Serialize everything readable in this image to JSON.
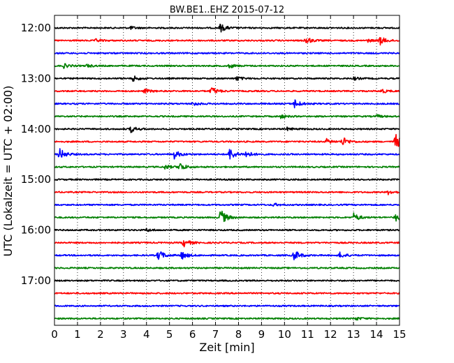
{
  "chart_data": {
    "type": "line",
    "title": "BW.BE1..EHZ 2015-07-12",
    "xlabel": "Zeit  [min]",
    "ylabel": "UTC (Lokalzeit = UTC + 02:00)",
    "xlim": [
      0,
      15
    ],
    "x_ticks": [
      0,
      1,
      2,
      3,
      4,
      5,
      6,
      7,
      8,
      9,
      10,
      11,
      12,
      13,
      14,
      15
    ],
    "x_tick_labels": [
      "0",
      "1",
      "2",
      "3",
      "4",
      "5",
      "6",
      "7",
      "8",
      "9",
      "10",
      "11",
      "12",
      "13",
      "14",
      "15"
    ],
    "y_tick_labels": [
      {
        "label": "12:00",
        "trace": 0
      },
      {
        "label": "13:00",
        "trace": 4
      },
      {
        "label": "14:00",
        "trace": 8
      },
      {
        "label": "15:00",
        "trace": 12
      },
      {
        "label": "16:00",
        "trace": 16
      },
      {
        "label": "17:00",
        "trace": 20
      }
    ],
    "trace_interval_min": 15,
    "grid": {
      "vertical": true,
      "style": "dotted"
    },
    "colors": [
      "#000000",
      "#ff0000",
      "#0000ff",
      "#008000"
    ],
    "series": [
      {
        "start": "12:00",
        "color": "#000000",
        "events": [
          {
            "t": 7.2,
            "amp": 6
          },
          {
            "t": 3.3,
            "amp": 2
          }
        ]
      },
      {
        "start": "12:15",
        "color": "#ff0000",
        "events": [
          {
            "t": 1.8,
            "amp": 2
          },
          {
            "t": 10.9,
            "amp": 6
          },
          {
            "t": 14.1,
            "amp": 7
          },
          {
            "t": 13.6,
            "amp": 2
          }
        ]
      },
      {
        "start": "12:30",
        "color": "#0000ff",
        "events": []
      },
      {
        "start": "12:45",
        "color": "#008000",
        "events": [
          {
            "t": 0.4,
            "amp": 3
          },
          {
            "t": 1.4,
            "amp": 2
          },
          {
            "t": 7.6,
            "amp": 3
          }
        ]
      },
      {
        "start": "13:00",
        "color": "#000000",
        "events": [
          {
            "t": 3.4,
            "amp": 4
          },
          {
            "t": 7.9,
            "amp": 3
          },
          {
            "t": 13.0,
            "amp": 2
          }
        ]
      },
      {
        "start": "13:15",
        "color": "#ff0000",
        "events": [
          {
            "t": 3.9,
            "amp": 3
          },
          {
            "t": 6.8,
            "amp": 6
          },
          {
            "t": 14.2,
            "amp": 3
          }
        ]
      },
      {
        "start": "13:30",
        "color": "#0000ff",
        "events": [
          {
            "t": 6.0,
            "amp": 3
          },
          {
            "t": 10.4,
            "amp": 7
          }
        ]
      },
      {
        "start": "13:45",
        "color": "#008000",
        "events": [
          {
            "t": 9.8,
            "amp": 3
          },
          {
            "t": 14.0,
            "amp": 2
          }
        ]
      },
      {
        "start": "14:00",
        "color": "#000000",
        "events": [
          {
            "t": 3.3,
            "amp": 5
          },
          {
            "t": 10.1,
            "amp": 2
          }
        ]
      },
      {
        "start": "14:15",
        "color": "#ff0000",
        "events": [
          {
            "t": 12.5,
            "amp": 7
          },
          {
            "t": 14.8,
            "amp": 12
          },
          {
            "t": 11.8,
            "amp": 4
          }
        ]
      },
      {
        "start": "14:30",
        "color": "#0000ff",
        "events": [
          {
            "t": 0.2,
            "amp": 9
          },
          {
            "t": 5.2,
            "amp": 6
          },
          {
            "t": 7.6,
            "amp": 9
          },
          {
            "t": 8.3,
            "amp": 5
          }
        ]
      },
      {
        "start": "14:45",
        "color": "#008000",
        "events": [
          {
            "t": 5.4,
            "amp": 7
          },
          {
            "t": 4.8,
            "amp": 3
          }
        ]
      },
      {
        "start": "15:00",
        "color": "#000000",
        "events": []
      },
      {
        "start": "15:15",
        "color": "#ff0000",
        "events": [
          {
            "t": 14.5,
            "amp": 3
          }
        ]
      },
      {
        "start": "15:30",
        "color": "#0000ff",
        "events": [
          {
            "t": 9.5,
            "amp": 2
          }
        ]
      },
      {
        "start": "15:45",
        "color": "#008000",
        "events": [
          {
            "t": 7.2,
            "amp": 12
          },
          {
            "t": 13.0,
            "amp": 6
          },
          {
            "t": 14.8,
            "amp": 6
          }
        ]
      },
      {
        "start": "16:00",
        "color": "#000000",
        "events": [
          {
            "t": 4.0,
            "amp": 2
          }
        ]
      },
      {
        "start": "16:15",
        "color": "#ff0000",
        "events": [
          {
            "t": 5.6,
            "amp": 6
          }
        ]
      },
      {
        "start": "16:30",
        "color": "#0000ff",
        "events": [
          {
            "t": 4.5,
            "amp": 8
          },
          {
            "t": 5.5,
            "amp": 6
          },
          {
            "t": 10.4,
            "amp": 8
          },
          {
            "t": 12.4,
            "amp": 4
          }
        ]
      },
      {
        "start": "16:45",
        "color": "#008000",
        "events": []
      },
      {
        "start": "17:00",
        "color": "#000000",
        "events": []
      },
      {
        "start": "17:15",
        "color": "#ff0000",
        "events": []
      },
      {
        "start": "17:30",
        "color": "#0000ff",
        "events": []
      },
      {
        "start": "17:45",
        "color": "#008000",
        "events": [
          {
            "t": 13.1,
            "amp": 2
          }
        ]
      }
    ]
  }
}
